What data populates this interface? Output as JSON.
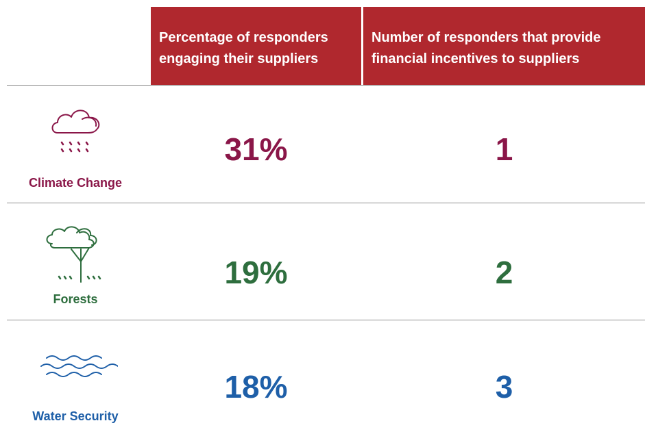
{
  "table": {
    "headers": [
      "Percentage of responders engaging their suppliers",
      "Number of responders that provide financial incentives to suppliers"
    ],
    "rows": [
      {
        "label": "Climate Change",
        "percentage": "31%",
        "incentives": "1"
      },
      {
        "label": "Forests",
        "percentage": "19%",
        "incentives": "2"
      },
      {
        "label": "Water Security",
        "percentage": "18%",
        "incentives": "3"
      }
    ]
  }
}
